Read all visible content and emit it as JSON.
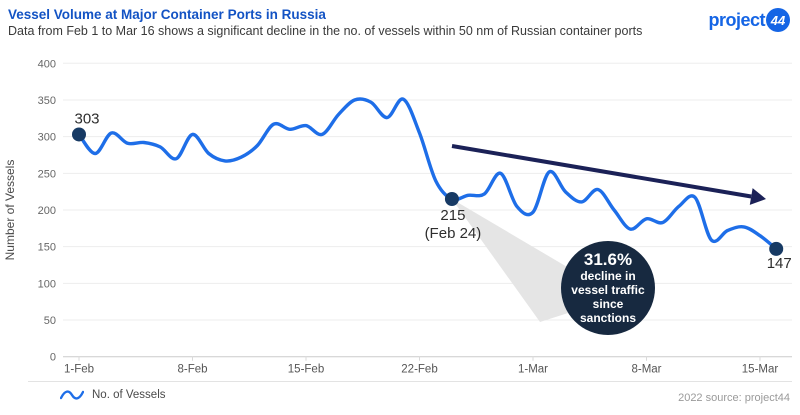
{
  "header": {
    "title": "Vessel Volume at Major Container Ports in Russia",
    "subtitle": "Data from Feb 1 to Mar 16 shows a significant decline in the no. of vessels within 50 nm of Russian container ports"
  },
  "logo": {
    "text": "project",
    "badge": "44"
  },
  "colors": {
    "title_blue": "#1353c4",
    "logo_blue": "#1565e5",
    "line_blue": "#1e6ee8",
    "dot_navy": "#173a64",
    "arrow_navy": "#1b2157",
    "badge_navy": "#172940",
    "grid_gray": "#ededed",
    "axis_gray": "#cccccc",
    "callout_gray": "#e5e5e5"
  },
  "chart_data": {
    "type": "line",
    "series_name": "No. of Vessels",
    "ylabel": "Number of Vessels",
    "ylim": [
      0,
      400
    ],
    "y_ticks": [
      0,
      50,
      100,
      150,
      200,
      250,
      300,
      350,
      400
    ],
    "x_tick_labels": [
      "1-Feb",
      "8-Feb",
      "15-Feb",
      "22-Feb",
      "1-Mar",
      "8-Mar",
      "15-Mar"
    ],
    "x_tick_days": [
      0,
      7,
      14,
      21,
      28,
      35,
      42
    ],
    "grid": "horizontal only",
    "legend_position": "bottom-left",
    "dates": [
      "1-Feb",
      "2-Feb",
      "3-Feb",
      "4-Feb",
      "5-Feb",
      "6-Feb",
      "7-Feb",
      "8-Feb",
      "9-Feb",
      "10-Feb",
      "11-Feb",
      "12-Feb",
      "13-Feb",
      "14-Feb",
      "15-Feb",
      "16-Feb",
      "17-Feb",
      "18-Feb",
      "19-Feb",
      "20-Feb",
      "21-Feb",
      "22-Feb",
      "23-Feb",
      "24-Feb",
      "25-Feb",
      "26-Feb",
      "27-Feb",
      "28-Feb",
      "1-Mar",
      "2-Mar",
      "3-Mar",
      "4-Mar",
      "5-Mar",
      "6-Mar",
      "7-Mar",
      "8-Mar",
      "9-Mar",
      "10-Mar",
      "11-Mar",
      "12-Mar",
      "13-Mar",
      "14-Mar",
      "15-Mar",
      "16-Mar"
    ],
    "values": [
      303,
      277,
      305,
      291,
      292,
      286,
      270,
      303,
      277,
      267,
      272,
      288,
      317,
      310,
      315,
      303,
      330,
      350,
      347,
      326,
      351,
      305,
      240,
      215,
      220,
      222,
      250,
      205,
      197,
      252,
      225,
      211,
      228,
      200,
      174,
      188,
      183,
      205,
      217,
      159,
      172,
      177,
      165,
      147
    ],
    "annotations": {
      "start_point": {
        "label": "303",
        "day": 0,
        "value": 303
      },
      "sanctions_point": {
        "label": "215",
        "sublabel": "(Feb 24)",
        "day": 23,
        "value": 215
      },
      "end_point": {
        "label": "147",
        "day": 43,
        "value": 147
      },
      "badge": {
        "headline": "31.6%",
        "lines": [
          "decline in",
          "vessel traffic",
          "since",
          "sanctions"
        ]
      },
      "trend_arrow": {
        "description": "downward trend arrow over post-sanction period"
      }
    }
  },
  "legend": {
    "label": "No. of Vessels"
  },
  "footer": {
    "source": "2022 source: project44"
  }
}
